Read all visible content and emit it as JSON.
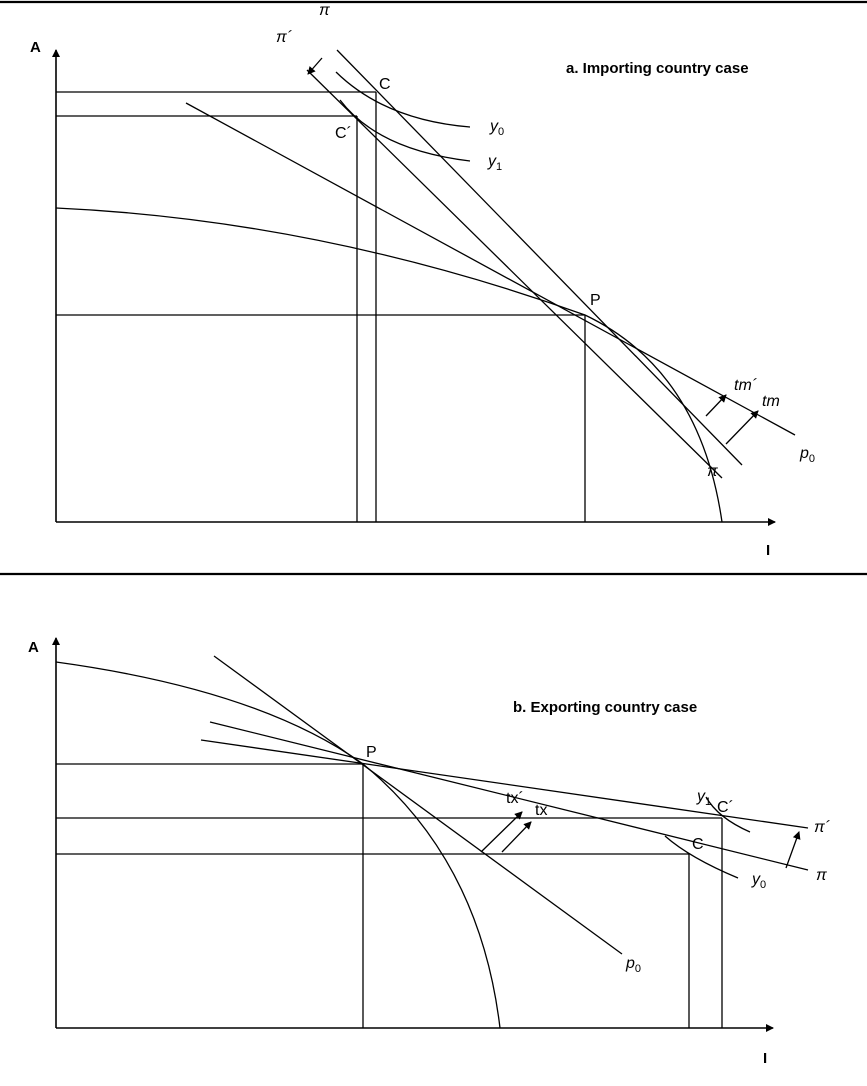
{
  "panel_a": {
    "title": "a. Importing country case",
    "axis_y": "A",
    "axis_x": "I",
    "point_c": "C",
    "point_c_prime": "C´",
    "point_p": "P",
    "pi_top": "π",
    "pi_prime_top": "π´",
    "pi_bottom": "π",
    "y0_base": "y",
    "y0_sub": "0",
    "y1_base": "y",
    "y1_sub": "1",
    "tm_prime": "tm´",
    "tm": "tm",
    "p0_base": "p",
    "p0_sub": "0"
  },
  "panel_b": {
    "title": "b. Exporting country case",
    "axis_y": "A",
    "axis_x": "I",
    "point_p": "P",
    "point_c": "C",
    "point_c_prime": "C´",
    "tx_prime": "tx´",
    "tx": "tx",
    "y1_base": "y",
    "y1_sub": "1",
    "y0_base": "y",
    "y0_sub": "0",
    "pi_prime": "π´",
    "pi": "π",
    "p0_base": "p",
    "p0_sub": "0"
  }
}
